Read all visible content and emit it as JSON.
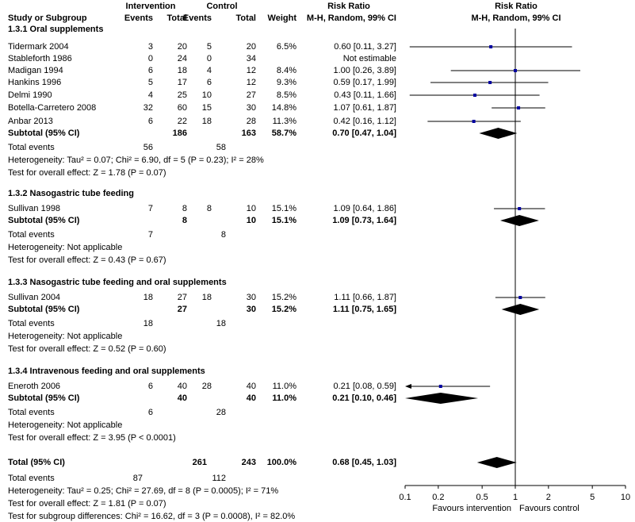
{
  "header": {
    "study": "Study or Subgroup",
    "intervention": "Intervention",
    "control": "Control",
    "events": "Events",
    "total": "Total",
    "weight": "Weight",
    "rr_title": "Risk Ratio",
    "rr_method": "M-H, Random, 99% CI"
  },
  "groups": [
    {
      "title": "1.3.1 Oral supplements",
      "studies": [
        {
          "name": "Tidermark 2004",
          "ie": "3",
          "it": "20",
          "ce": "5",
          "ct": "20",
          "w": "6.5%",
          "ci": "0.60 [0.11, 3.27]"
        },
        {
          "name": "Stableforth 1986",
          "ie": "0",
          "it": "24",
          "ce": "0",
          "ct": "34",
          "w": "",
          "ci": "Not estimable"
        },
        {
          "name": "Madigan 1994",
          "ie": "6",
          "it": "18",
          "ce": "4",
          "ct": "12",
          "w": "8.4%",
          "ci": "1.00 [0.26, 3.89]"
        },
        {
          "name": "Hankins 1996",
          "ie": "5",
          "it": "17",
          "ce": "6",
          "ct": "12",
          "w": "9.3%",
          "ci": "0.59 [0.17, 1.99]"
        },
        {
          "name": "Delmi 1990",
          "ie": "4",
          "it": "25",
          "ce": "10",
          "ct": "27",
          "w": "8.5%",
          "ci": "0.43 [0.11, 1.66]"
        },
        {
          "name": "Botella-Carretero 2008",
          "ie": "32",
          "it": "60",
          "ce": "15",
          "ct": "30",
          "w": "14.8%",
          "ci": "1.07 [0.61, 1.87]"
        },
        {
          "name": "Anbar 2013",
          "ie": "6",
          "it": "22",
          "ce": "18",
          "ct": "28",
          "w": "11.3%",
          "ci": "0.42 [0.16, 1.12]"
        }
      ],
      "subtotal": {
        "label": "Subtotal (95% CI)",
        "it": "186",
        "ct": "163",
        "w": "58.7%",
        "ci": "0.70 [0.47, 1.04]"
      },
      "events": {
        "label": "Total events",
        "ie": "56",
        "ce": "58"
      },
      "lines": [
        "Heterogeneity: Tau² = 0.07; Chi² = 6.90, df = 5 (P = 0.23); I² = 28%",
        "Test for overall effect: Z = 1.78 (P = 0.07)"
      ]
    },
    {
      "title": "1.3.2 Nasogastric tube feeding",
      "studies": [
        {
          "name": "Sullivan 1998",
          "ie": "7",
          "it": "8",
          "ce": "8",
          "ct": "10",
          "w": "15.1%",
          "ci": "1.09 [0.64, 1.86]"
        }
      ],
      "subtotal": {
        "label": "Subtotal (95% CI)",
        "it": "8",
        "ct": "10",
        "w": "15.1%",
        "ci": "1.09 [0.73, 1.64]"
      },
      "events": {
        "label": "Total events",
        "ie": "7",
        "ce": "8"
      },
      "lines": [
        "Heterogeneity: Not applicable",
        "Test for overall effect: Z = 0.43 (P = 0.67)"
      ]
    },
    {
      "title": "1.3.3 Nasogastric tube feeding and oral supplements",
      "studies": [
        {
          "name": "Sullivan 2004",
          "ie": "18",
          "it": "27",
          "ce": "18",
          "ct": "30",
          "w": "15.2%",
          "ci": "1.11 [0.66, 1.87]"
        }
      ],
      "subtotal": {
        "label": "Subtotal (95% CI)",
        "it": "27",
        "ct": "30",
        "w": "15.2%",
        "ci": "1.11 [0.75, 1.65]"
      },
      "events": {
        "label": "Total events",
        "ie": "18",
        "ce": "18"
      },
      "lines": [
        "Heterogeneity: Not applicable",
        "Test for overall effect: Z = 0.52 (P = 0.60)"
      ]
    },
    {
      "title": "1.3.4 Intravenous feeding and oral supplements",
      "studies": [
        {
          "name": "Eneroth 2006",
          "ie": "6",
          "it": "40",
          "ce": "28",
          "ct": "40",
          "w": "11.0%",
          "ci": "0.21 [0.08, 0.59]"
        }
      ],
      "subtotal": {
        "label": "Subtotal (95% CI)",
        "it": "40",
        "ct": "40",
        "w": "11.0%",
        "ci": "0.21 [0.10, 0.46]"
      },
      "events": {
        "label": "Total events",
        "ie": "6",
        "ce": "28"
      },
      "lines": [
        "Heterogeneity: Not applicable",
        "Test for overall effect: Z = 3.95 (P < 0.0001)"
      ]
    }
  ],
  "total": {
    "label": "Total (95% CI)",
    "it": "261",
    "ct": "243",
    "w": "100.0%",
    "ci": "0.68 [0.45, 1.03]"
  },
  "total_events": {
    "label": "Total events",
    "ie": "87",
    "ce": "112"
  },
  "footer_lines": [
    "Heterogeneity: Tau² = 0.25; Chi² = 27.69, df = 8 (P = 0.0005); I² = 71%",
    "Test for overall effect: Z = 1.81 (P = 0.07)",
    "Test for subgroup differences: Chi² = 16.62, df = 3 (P = 0.0008), I² = 82.0%"
  ],
  "axis": {
    "favours_left": "Favours intervention",
    "favours_right": "Favours control"
  },
  "colors": {
    "marker": "#0000a0",
    "diamond": "#000000",
    "line": "#000000"
  },
  "chart_data": {
    "type": "forest",
    "xscale": "log",
    "xlim": [
      0.1,
      10
    ],
    "ticks": [
      0.1,
      0.2,
      0.5,
      1,
      2,
      5,
      10
    ],
    "tick_labels": [
      "0.1",
      "0.2",
      "0.5",
      "1",
      "2",
      "5",
      "10"
    ],
    "reference": 1,
    "xlabel_left": "Favours intervention",
    "xlabel_right": "Favours control",
    "studies": [
      {
        "name": "Tidermark 2004",
        "rr": 0.6,
        "lo": 0.11,
        "hi": 3.27
      },
      {
        "name": "Madigan 1994",
        "rr": 1.0,
        "lo": 0.26,
        "hi": 3.89
      },
      {
        "name": "Hankins 1996",
        "rr": 0.59,
        "lo": 0.17,
        "hi": 1.99
      },
      {
        "name": "Delmi 1990",
        "rr": 0.43,
        "lo": 0.11,
        "hi": 1.66
      },
      {
        "name": "Botella-Carretero 2008",
        "rr": 1.07,
        "lo": 0.61,
        "hi": 1.87
      },
      {
        "name": "Anbar 2013",
        "rr": 0.42,
        "lo": 0.16,
        "hi": 1.12
      },
      {
        "name": "Sullivan 1998",
        "rr": 1.09,
        "lo": 0.64,
        "hi": 1.86
      },
      {
        "name": "Sullivan 2004",
        "rr": 1.11,
        "lo": 0.66,
        "hi": 1.87
      },
      {
        "name": "Eneroth 2006",
        "rr": 0.21,
        "lo": 0.08,
        "hi": 0.59
      }
    ],
    "diamonds": [
      {
        "name": "1.3.1 Subtotal",
        "rr": 0.7,
        "lo": 0.47,
        "hi": 1.04
      },
      {
        "name": "1.3.2 Subtotal",
        "rr": 1.09,
        "lo": 0.73,
        "hi": 1.64
      },
      {
        "name": "1.3.3 Subtotal",
        "rr": 1.11,
        "lo": 0.75,
        "hi": 1.65
      },
      {
        "name": "1.3.4 Subtotal",
        "rr": 0.21,
        "lo": 0.1,
        "hi": 0.46
      },
      {
        "name": "Total",
        "rr": 0.68,
        "lo": 0.45,
        "hi": 1.03
      }
    ]
  }
}
